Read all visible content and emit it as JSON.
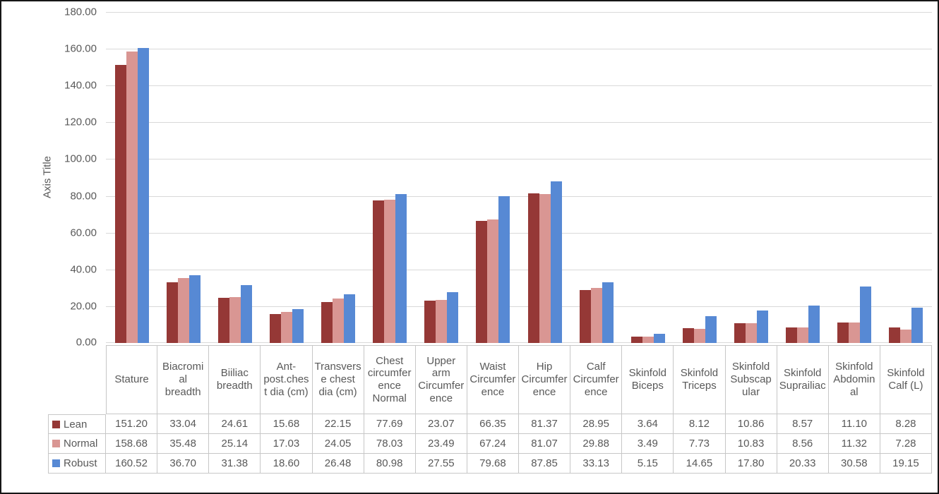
{
  "window": {
    "background_color": "#FFFFFF",
    "frame_border_color": "#161616"
  },
  "chart_data": {
    "type": "bar",
    "title": "",
    "xlabel": "",
    "ylabel": "Axis Title",
    "ylim": [
      0,
      180
    ],
    "ytick_step": 20,
    "ytick_decimals": 2,
    "value_decimals": 2,
    "grid": true,
    "gridline_color": "#D9D9D9",
    "text_color": "#595959",
    "table_border_color": "#C7C7C7",
    "legend_position": "data-table-left",
    "categories": [
      "Stature",
      "Biacromial breadth",
      "Biiliac breadth",
      "Ant-post.chest dia (cm)",
      "Transverse chest dia (cm)",
      "Chest circumference Normal",
      "Upper arm Circumference",
      "Waist Circumference",
      "Hip Circumference",
      "Calf Circumference",
      "Skinfold Biceps",
      "Skinfold Triceps",
      "Skinfold Subscapular",
      "Skinfold Suprailiac",
      "Skinfold Abdominal",
      "Skinfold Calf (L)"
    ],
    "series": [
      {
        "name": "Lean",
        "color": "#953836",
        "values": [
          151.2,
          33.04,
          24.61,
          15.68,
          22.15,
          77.69,
          23.07,
          66.35,
          81.37,
          28.95,
          3.64,
          8.12,
          10.86,
          8.57,
          11.1,
          8.28
        ]
      },
      {
        "name": "Normal",
        "color": "#D99693",
        "values": [
          158.68,
          35.48,
          25.14,
          17.03,
          24.05,
          78.03,
          23.49,
          67.24,
          81.07,
          29.88,
          3.49,
          7.73,
          10.83,
          8.56,
          11.32,
          7.28
        ]
      },
      {
        "name": "Robust",
        "color": "#5789D4",
        "values": [
          160.52,
          36.7,
          31.38,
          18.6,
          26.48,
          80.98,
          27.55,
          79.68,
          87.85,
          33.13,
          5.15,
          14.65,
          17.8,
          20.33,
          30.58,
          19.15
        ]
      }
    ]
  }
}
